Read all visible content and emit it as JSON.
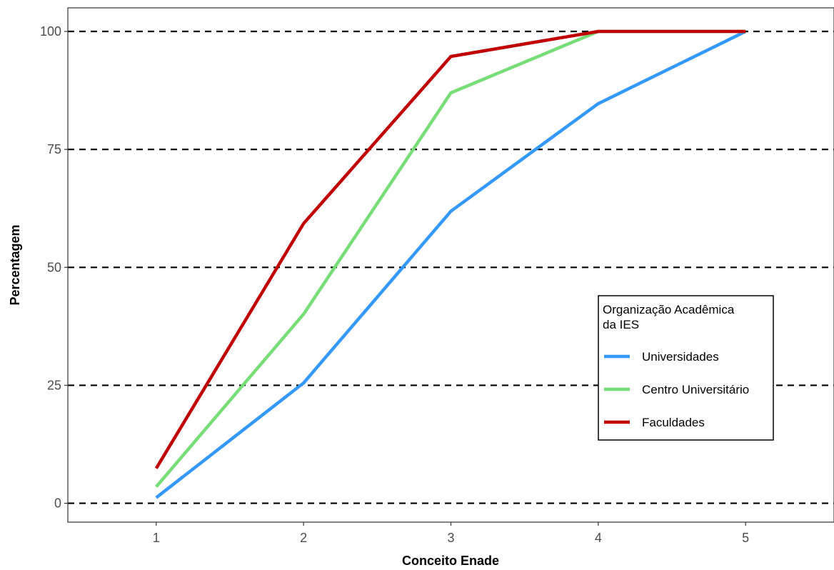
{
  "chart_data": {
    "type": "line",
    "xlabel": "Conceito Enade",
    "ylabel": "Percentagem",
    "x": [
      1,
      2,
      3,
      4,
      5
    ],
    "xlim": [
      0.4,
      5.6
    ],
    "ylim": [
      -4,
      105
    ],
    "y_ticks": [
      0,
      25,
      50,
      75,
      100
    ],
    "x_ticks": [
      1,
      2,
      3,
      4,
      5
    ],
    "grid": "horizontal dashed at y ticks",
    "legend": {
      "title_lines": [
        "Organização Acadêmica",
        "da IES"
      ],
      "position": "right-center"
    },
    "series": [
      {
        "name": "Universidades",
        "color": "#3399FF",
        "values": [
          1.2,
          25.5,
          61.9,
          84.7,
          100
        ]
      },
      {
        "name": "Centro Universitário",
        "color": "#77DD77",
        "values": [
          3.5,
          40.1,
          87.0,
          100,
          100
        ]
      },
      {
        "name": "Faculdades",
        "color": "#C00000",
        "values": [
          7.4,
          59.3,
          94.7,
          100,
          100
        ]
      }
    ]
  }
}
